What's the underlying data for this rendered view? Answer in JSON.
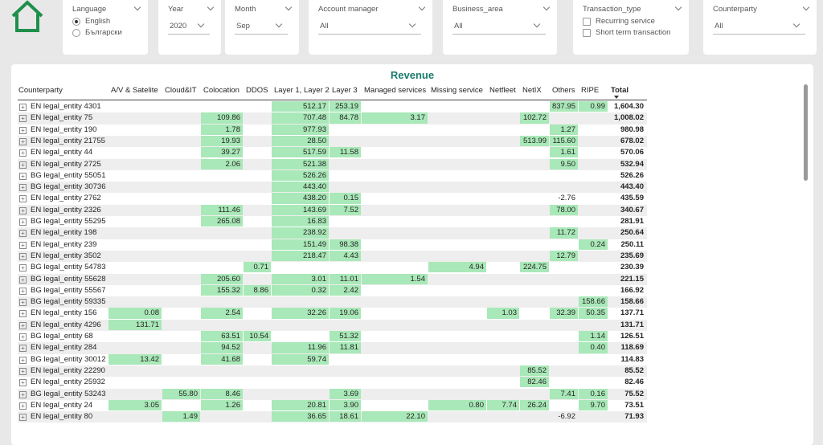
{
  "filters": {
    "language": {
      "title": "Language",
      "options": [
        "English",
        "Български"
      ],
      "selected": 0
    },
    "year": {
      "title": "Year",
      "value": "2020"
    },
    "month": {
      "title": "Month",
      "value": "Sep"
    },
    "account_manager": {
      "title": "Account manager",
      "value": "All"
    },
    "business_area": {
      "title": "Business_area",
      "value": "All"
    },
    "transaction_type": {
      "title": "Transaction_type",
      "options": [
        "Recurring service",
        "Short term transaction"
      ]
    },
    "counterparty": {
      "title": "Counterparty",
      "value": "All"
    }
  },
  "table": {
    "title": "Revenue",
    "highlight_color": "#a9e8b8",
    "columns": [
      "Counterparty",
      "A/V & Satelite",
      "Cloud&IT",
      "Colocation",
      "DDOS",
      "Layer 1, Layer 2",
      "Layer 3",
      "Managed services",
      "Missing service",
      "Netfleet",
      "NetIX",
      "Others",
      "RIPE",
      "Total"
    ],
    "rows": [
      {
        "counterparty": "EN legal_entity 4301",
        "cells": [
          null,
          null,
          null,
          null,
          "512.17",
          "253.19",
          null,
          null,
          null,
          null,
          "837.95",
          "0.99",
          "1,604.30"
        ]
      },
      {
        "counterparty": "EN legal_entity 75",
        "cells": [
          null,
          null,
          "109.86",
          null,
          "707.48",
          "84.78",
          "3.17",
          null,
          null,
          "102.72",
          null,
          null,
          "1,008.02"
        ]
      },
      {
        "counterparty": "EN legal_entity 190",
        "cells": [
          null,
          null,
          "1.78",
          null,
          "977.93",
          null,
          null,
          null,
          null,
          null,
          "1.27",
          null,
          "980.98"
        ]
      },
      {
        "counterparty": "EN legal_entity 21755",
        "cells": [
          null,
          null,
          "19.93",
          null,
          "28.50",
          null,
          null,
          null,
          null,
          "513.99",
          "115.60",
          null,
          "678.02"
        ]
      },
      {
        "counterparty": "EN legal_entity 44",
        "cells": [
          null,
          null,
          "39.27",
          null,
          "517.59",
          "11.58",
          null,
          null,
          null,
          null,
          "1.61",
          null,
          "570.06"
        ]
      },
      {
        "counterparty": "EN legal_entity 2725",
        "cells": [
          null,
          null,
          "2.06",
          null,
          "521.38",
          null,
          null,
          null,
          null,
          null,
          "9.50",
          null,
          "532.94"
        ]
      },
      {
        "counterparty": "BG legal_entity 55051",
        "cells": [
          null,
          null,
          null,
          null,
          "526.26",
          null,
          null,
          null,
          null,
          null,
          null,
          null,
          "526.26"
        ]
      },
      {
        "counterparty": "BG legal_entity 30736",
        "cells": [
          null,
          null,
          null,
          null,
          "443.40",
          null,
          null,
          null,
          null,
          null,
          null,
          null,
          "443.40"
        ]
      },
      {
        "counterparty": "EN legal_entity 2762",
        "cells": [
          null,
          null,
          null,
          null,
          "438.20",
          "0.15",
          null,
          null,
          null,
          null,
          "-2.76",
          null,
          "435.59"
        ]
      },
      {
        "counterparty": "EN legal_entity 2326",
        "cells": [
          null,
          null,
          "111.46",
          null,
          "143.69",
          "7.52",
          null,
          null,
          null,
          null,
          "78.00",
          null,
          "340.67"
        ]
      },
      {
        "counterparty": "BG legal_entity 55295",
        "cells": [
          null,
          null,
          "265.08",
          null,
          "16.83",
          null,
          null,
          null,
          null,
          null,
          null,
          null,
          "281.91"
        ]
      },
      {
        "counterparty": "EN legal_entity 198",
        "cells": [
          null,
          null,
          null,
          null,
          "238.92",
          null,
          null,
          null,
          null,
          null,
          "11.72",
          null,
          "250.64"
        ]
      },
      {
        "counterparty": "EN legal_entity 239",
        "cells": [
          null,
          null,
          null,
          null,
          "151.49",
          "98.38",
          null,
          null,
          null,
          null,
          null,
          "0.24",
          "250.11"
        ]
      },
      {
        "counterparty": "EN legal_entity 3502",
        "cells": [
          null,
          null,
          null,
          null,
          "218.47",
          "4.43",
          null,
          null,
          null,
          null,
          "12.79",
          null,
          "235.69"
        ]
      },
      {
        "counterparty": "BG legal_entity 54783",
        "cells": [
          null,
          null,
          null,
          "0.71",
          null,
          null,
          null,
          "4.94",
          null,
          "224.75",
          null,
          null,
          "230.39"
        ]
      },
      {
        "counterparty": "BG legal_entity 55628",
        "cells": [
          null,
          null,
          "205.60",
          null,
          "3.01",
          "11.01",
          "1.54",
          null,
          null,
          null,
          null,
          null,
          "221.15"
        ]
      },
      {
        "counterparty": "BG legal_entity 55567",
        "cells": [
          null,
          null,
          "155.32",
          "8.86",
          "0.32",
          "2.42",
          null,
          null,
          null,
          null,
          null,
          null,
          "166.92"
        ]
      },
      {
        "counterparty": "BG legal_entity 59335",
        "cells": [
          null,
          null,
          null,
          null,
          null,
          null,
          null,
          null,
          null,
          null,
          null,
          "158.66",
          "158.66"
        ]
      },
      {
        "counterparty": "EN legal_entity 156",
        "cells": [
          "0.08",
          null,
          "2.54",
          null,
          "32.26",
          "19.06",
          null,
          null,
          "1.03",
          null,
          "32.39",
          "50.35",
          "137.71"
        ]
      },
      {
        "counterparty": "EN legal_entity 4296",
        "cells": [
          "131.71",
          null,
          null,
          null,
          null,
          null,
          null,
          null,
          null,
          null,
          null,
          null,
          "131.71"
        ]
      },
      {
        "counterparty": "BG legal_entity 68",
        "cells": [
          null,
          null,
          "63.51",
          "10.54",
          null,
          "51.32",
          null,
          null,
          null,
          null,
          null,
          "1.14",
          "126.51"
        ]
      },
      {
        "counterparty": "EN legal_entity 284",
        "cells": [
          null,
          null,
          "94.52",
          null,
          "11.96",
          "11.81",
          null,
          null,
          null,
          null,
          null,
          "0.40",
          "118.69"
        ]
      },
      {
        "counterparty": "BG legal_entity 30012",
        "cells": [
          "13.42",
          null,
          "41.68",
          null,
          "59.74",
          null,
          null,
          null,
          null,
          null,
          null,
          null,
          "114.83"
        ]
      },
      {
        "counterparty": "EN legal_entity 22290",
        "cells": [
          null,
          null,
          null,
          null,
          null,
          null,
          null,
          null,
          null,
          "85.52",
          null,
          null,
          "85.52"
        ]
      },
      {
        "counterparty": "EN legal_entity 25932",
        "cells": [
          null,
          null,
          null,
          null,
          null,
          null,
          null,
          null,
          null,
          "82.46",
          null,
          null,
          "82.46"
        ]
      },
      {
        "counterparty": "BG legal_entity 53243",
        "cells": [
          null,
          "55.80",
          "8.46",
          null,
          null,
          "3.69",
          null,
          null,
          null,
          null,
          "7.41",
          "0.16",
          "75.52"
        ]
      },
      {
        "counterparty": "EN legal_entity 24",
        "cells": [
          "3.05",
          null,
          "1.26",
          null,
          "20.81",
          "3.90",
          null,
          "0.80",
          "7.74",
          "26.24",
          null,
          "9.70",
          "73.51"
        ]
      },
      {
        "counterparty": "EN legal_entity 80",
        "cells": [
          null,
          "1.49",
          null,
          null,
          "36.65",
          "18.61",
          "22.10",
          null,
          null,
          null,
          "-6.92",
          null,
          "71.93"
        ]
      }
    ]
  }
}
